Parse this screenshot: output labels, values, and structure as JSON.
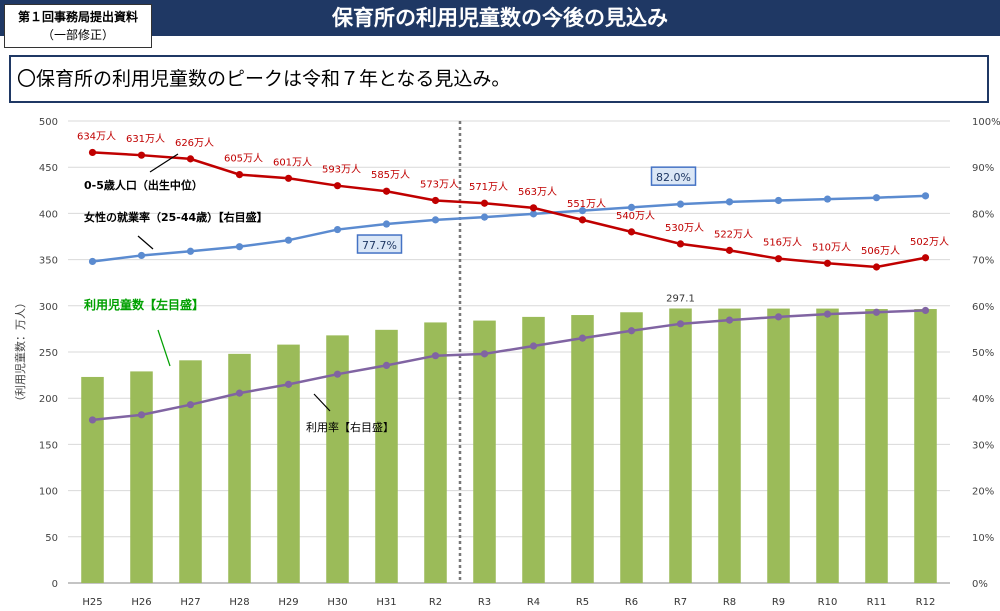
{
  "header": {
    "title": "保育所の利用児童数の今後の見込み",
    "badge_line1": "第１回事務局提出資料",
    "badge_line2": "（一部修正）"
  },
  "subtitle": "〇保育所の利用児童数のピークは令和７年となる見込み。",
  "chart_data": {
    "type": "bar",
    "categories": [
      "H25",
      "H26",
      "H27",
      "H28",
      "H29",
      "H30",
      "H31",
      "R2",
      "R3",
      "R4",
      "R5",
      "R6",
      "R7",
      "R8",
      "R9",
      "R10",
      "R11",
      "R12"
    ],
    "ylabel": "（利用児童数：万人）",
    "ylim": [
      0,
      500
    ],
    "y_ticks": [
      "0",
      "50",
      "100",
      "150",
      "200",
      "250",
      "300",
      "350",
      "400",
      "450",
      "500"
    ],
    "y2lim": [
      0,
      100
    ],
    "y2_ticks": [
      "0%",
      "10%",
      "20%",
      "30%",
      "40%",
      "50%",
      "60%",
      "70%",
      "80%",
      "90%",
      "100%"
    ],
    "divider_after_category": "R2",
    "colors": {
      "bars": "#9bbb59",
      "population": "#c00000",
      "employment": "#5b8bd0",
      "usage": "#8064a2"
    },
    "bars": {
      "name": "利用児童数【左目盛】",
      "values": [
        223,
        229,
        241,
        248,
        258,
        268,
        274,
        282,
        284,
        288,
        290,
        293,
        297.1,
        297,
        297,
        297,
        296.5,
        296.5
      ],
      "labels": [
        "",
        "",
        "",
        "",
        "",
        "",
        "",
        "",
        "",
        "",
        "",
        "",
        "297.1",
        "",
        "",
        "",
        "",
        ""
      ]
    },
    "population": {
      "name": "0-5歳人口（出生中位）",
      "values": [
        466,
        463,
        459,
        442,
        438,
        430,
        424,
        414,
        411,
        406,
        393,
        380,
        367,
        360,
        351,
        346,
        342,
        352
      ],
      "labels": [
        "634万人",
        "631万人",
        "626万人",
        "605万人",
        "601万人",
        "593万人",
        "585万人",
        "573万人",
        "571万人",
        "563万人",
        "551万人",
        "540万人",
        "530万人",
        "522万人",
        "516万人",
        "510万人",
        "506万人",
        "502万人"
      ]
    },
    "employment": {
      "name": "女性の就業率（25-44歳）【右目盛】",
      "values": [
        69.6,
        70.9,
        71.8,
        72.8,
        74.2,
        76.5,
        77.7,
        78.6,
        79.2,
        79.9,
        80.6,
        81.3,
        82.0,
        82.5,
        82.8,
        83.1,
        83.4,
        83.8
      ],
      "callouts": [
        "77.7%",
        "82.0%"
      ]
    },
    "usage": {
      "name": "利用率【右目盛】",
      "values": [
        35.3,
        36.4,
        38.6,
        41.1,
        43.0,
        45.2,
        47.1,
        49.2,
        49.6,
        51.3,
        53.0,
        54.6,
        56.1,
        56.9,
        57.6,
        58.2,
        58.6,
        59.0
      ]
    },
    "annotations": {
      "population_label": "0-5歳人口（出生中位）",
      "employment_label": "女性の就業率（25-44歳）【右目盛】",
      "bars_label": "利用児童数【左目盛】",
      "usage_label": "利用率【右目盛】"
    }
  }
}
